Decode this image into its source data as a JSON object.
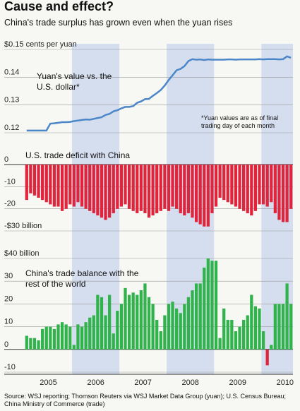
{
  "title": "Cause and effect?",
  "subtitle": "China's trade surplus has grown even when the yuan rises",
  "source": "Source: WSJ reporting; Thomson Reuters via WSJ Market Data Group (yuan); U.S. Census Bureau; China Ministry of Commerce (trade)",
  "chart_data": [
    {
      "type": "line",
      "label": "Yuan's value vs. the U.S. dollar*",
      "note": "*Yuan values are as of final trading day of each month",
      "color": "#4a86c8",
      "ylim": [
        0.12,
        0.15
      ],
      "yticks": [
        0.12,
        0.13,
        0.14,
        {
          "value": 0.15,
          "label": "$0.15 cents per yuan"
        }
      ],
      "values": [
        0.1208,
        0.1208,
        0.1208,
        0.1208,
        0.1208,
        0.1208,
        0.1233,
        0.1234,
        0.1236,
        0.1238,
        0.1238,
        0.1239,
        0.1242,
        0.1244,
        0.1246,
        0.1248,
        0.1247,
        0.125,
        0.1253,
        0.1256,
        0.1264,
        0.1268,
        0.1277,
        0.1281,
        0.1288,
        0.1293,
        0.1293,
        0.1296,
        0.1308,
        0.1313,
        0.1321,
        0.1322,
        0.1333,
        0.1343,
        0.1354,
        0.137,
        0.139,
        0.1407,
        0.1425,
        0.143,
        0.144,
        0.1458,
        0.1465,
        0.1463,
        0.1464,
        0.1462,
        0.1464,
        0.1463,
        0.1463,
        0.1463,
        0.1463,
        0.1464,
        0.1464,
        0.1463,
        0.1464,
        0.1464,
        0.1464,
        0.1464,
        0.1464,
        0.1465,
        0.1464,
        0.1465,
        0.1465,
        0.1465,
        0.1464,
        0.1465,
        0.1475,
        0.147
      ]
    },
    {
      "type": "bar",
      "label": "U.S. trade deficit with China",
      "color": "#e0243c",
      "ylim": [
        -30,
        0
      ],
      "yticks": [
        {
          "value": -30,
          "label": "-$30 billion"
        },
        -20,
        -10,
        0
      ],
      "values": [
        -16,
        -13,
        -14,
        -15,
        -16,
        -17,
        -18,
        -19,
        -19,
        -21,
        -20,
        -18,
        -19,
        -17,
        -19,
        -20,
        -21,
        -22,
        -23,
        -24,
        -25,
        -24,
        -22,
        -20,
        -19,
        -18,
        -20,
        -21,
        -22,
        -21,
        -22,
        -24,
        -23,
        -22,
        -21,
        -20,
        -21,
        -19,
        -20,
        -22,
        -23,
        -22,
        -24,
        -26,
        -27,
        -28,
        -28,
        -22,
        -19,
        -15,
        -16,
        -17,
        -18,
        -19,
        -20,
        -21,
        -22,
        -23,
        -21,
        -18,
        -18,
        -19,
        -17,
        -22,
        -25,
        -26,
        -26,
        -20
      ]
    },
    {
      "type": "bar",
      "label": "China's trade balance with the rest of the world",
      "color": "#2fb34a",
      "negative_color": "#e0243c",
      "ylim": [
        -10,
        40
      ],
      "yticks": [
        -10,
        0,
        10,
        20,
        30,
        {
          "value": 40,
          "label": "$40 billion"
        }
      ],
      "categories": [
        null,
        null,
        null,
        null,
        null,
        null,
        "2005",
        null,
        null,
        null,
        null,
        null,
        null,
        null,
        null,
        null,
        null,
        null,
        "2006",
        null,
        null,
        null,
        null,
        null,
        null,
        null,
        null,
        null,
        null,
        null,
        "2007",
        null,
        null,
        null,
        null,
        null,
        null,
        null,
        null,
        null,
        null,
        null,
        "2008",
        null,
        null,
        null,
        null,
        null,
        null,
        null,
        null,
        null,
        null,
        null,
        "2009",
        null,
        null,
        null,
        null,
        null,
        null,
        null,
        null,
        null,
        null,
        null,
        "2010",
        null
      ],
      "values": [
        6,
        5,
        5,
        4,
        9,
        10,
        10,
        9,
        11,
        12,
        11,
        10,
        2,
        11,
        10,
        12,
        14,
        15,
        24,
        23,
        15,
        24,
        7,
        17,
        20,
        27,
        24,
        25,
        24,
        26,
        29,
        23,
        20,
        13,
        8,
        15,
        20,
        21,
        18,
        16,
        20,
        23,
        26,
        29,
        29,
        36,
        40,
        39,
        39,
        5,
        18,
        13,
        13,
        8,
        10,
        13,
        15,
        24,
        19,
        18,
        8,
        -7,
        2,
        20,
        20,
        20,
        29,
        20
      ]
    }
  ]
}
